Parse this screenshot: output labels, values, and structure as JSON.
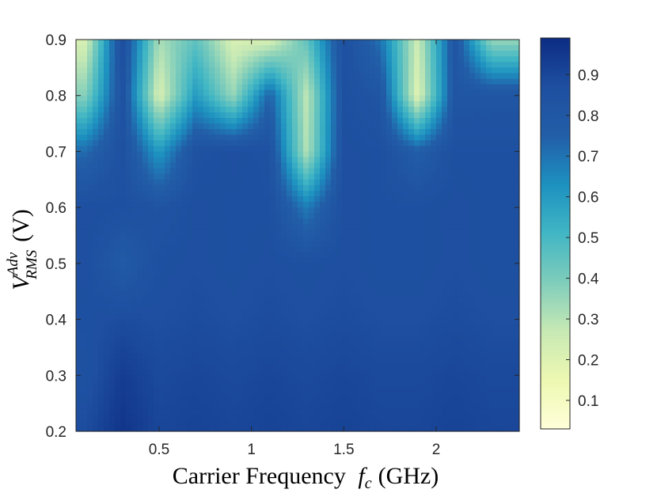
{
  "chart_data": {
    "type": "heatmap",
    "title": "",
    "xlabel": {
      "text": "Carrier Frequency",
      "symbol": "f",
      "subscript": "c",
      "unit": "(GHz)"
    },
    "ylabel": {
      "symbol": "V",
      "superscript": "Adv",
      "subscript": "RMS",
      "unit": "(V)"
    },
    "xlim": [
      0.05,
      2.45
    ],
    "ylim": [
      0.2,
      0.9
    ],
    "x_ticks": [
      0.5,
      1,
      1.5,
      2
    ],
    "x_tick_labels": [
      "0.5",
      "1",
      "1.5",
      "2"
    ],
    "y_ticks": [
      0.2,
      0.3,
      0.4,
      0.5,
      0.6,
      0.7,
      0.8,
      0.9
    ],
    "y_tick_labels": [
      "0.2",
      "0.3",
      "0.4",
      "0.5",
      "0.6",
      "0.7",
      "0.8",
      "0.9"
    ],
    "colorbar": {
      "range": [
        0.03,
        0.99
      ],
      "ticks": [
        0.1,
        0.2,
        0.3,
        0.4,
        0.5,
        0.6,
        0.7,
        0.8,
        0.9
      ],
      "tick_labels": [
        "0.1",
        "0.2",
        "0.3",
        "0.4",
        "0.5",
        "0.6",
        "0.7",
        "0.8",
        "0.9"
      ],
      "colormap": [
        "#ffffd9",
        "#edf8b1",
        "#c7e9b4",
        "#7fcdbb",
        "#41b6c4",
        "#1d91c0",
        "#225ea8",
        "#1e4fa0",
        "#0c2c84"
      ]
    },
    "x": [
      0.1,
      0.3,
      0.5,
      0.7,
      0.9,
      1.1,
      1.3,
      1.5,
      1.7,
      1.9,
      2.1,
      2.3
    ],
    "y": [
      0.2,
      0.3,
      0.4,
      0.5,
      0.6,
      0.7,
      0.8,
      0.9
    ],
    "z": [
      [
        0.88,
        0.96,
        0.9,
        0.91,
        0.9,
        0.91,
        0.9,
        0.91,
        0.9,
        0.9,
        0.91,
        0.9
      ],
      [
        0.85,
        0.93,
        0.89,
        0.9,
        0.89,
        0.9,
        0.89,
        0.9,
        0.89,
        0.89,
        0.9,
        0.89
      ],
      [
        0.86,
        0.88,
        0.87,
        0.88,
        0.87,
        0.88,
        0.87,
        0.88,
        0.87,
        0.87,
        0.88,
        0.87
      ],
      [
        0.87,
        0.78,
        0.86,
        0.87,
        0.86,
        0.87,
        0.86,
        0.87,
        0.86,
        0.86,
        0.87,
        0.86
      ],
      [
        0.87,
        0.86,
        0.83,
        0.87,
        0.86,
        0.86,
        0.68,
        0.87,
        0.86,
        0.86,
        0.87,
        0.86
      ],
      [
        0.72,
        0.86,
        0.6,
        0.85,
        0.87,
        0.85,
        0.3,
        0.87,
        0.86,
        0.76,
        0.86,
        0.86
      ],
      [
        0.38,
        0.85,
        0.22,
        0.6,
        0.35,
        0.75,
        0.28,
        0.86,
        0.82,
        0.2,
        0.82,
        0.82
      ],
      [
        0.22,
        0.88,
        0.32,
        0.45,
        0.22,
        0.22,
        0.45,
        0.86,
        0.7,
        0.25,
        0.82,
        0.35
      ]
    ]
  }
}
